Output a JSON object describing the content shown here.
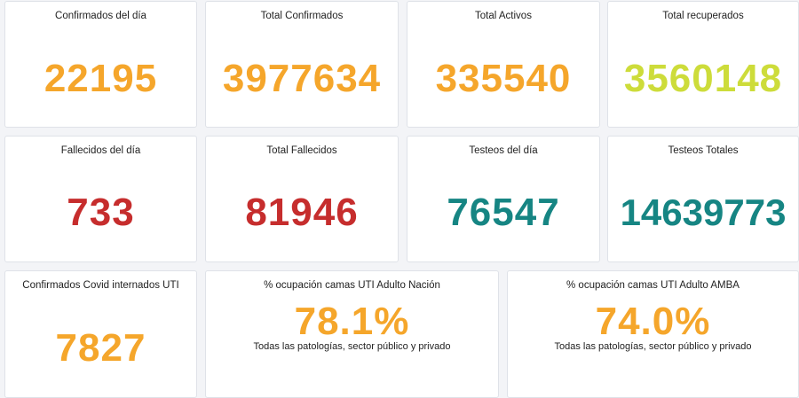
{
  "row1": {
    "card1": {
      "title": "Confirmados del día",
      "value": "22195"
    },
    "card2": {
      "title": "Total Confirmados",
      "value": "3977634"
    },
    "card3": {
      "title": "Total Activos",
      "value": "335540"
    },
    "card4": {
      "title": "Total recuperados",
      "value": "3560148"
    }
  },
  "row2": {
    "card1": {
      "title": "Fallecidos del día",
      "value": "733"
    },
    "card2": {
      "title": "Total Fallecidos",
      "value": "81946"
    },
    "card3": {
      "title": "Testeos del día",
      "value": "76547"
    },
    "card4": {
      "title": "Testeos Totales",
      "value": "14639773"
    }
  },
  "row3": {
    "card1": {
      "title": "Confirmados Covid internados UTI",
      "value": "7827"
    },
    "card2": {
      "title": "% ocupación camas UTI Adulto Nación",
      "value": "78.1%",
      "subtitle": "Todas las patologías, sector público y privado"
    },
    "card3": {
      "title": "% ocupación camas UTI Adulto AMBA",
      "value": "74.0%",
      "subtitle": "Todas las patologías, sector público y privado"
    }
  },
  "colors": {
    "orange": "#f5a62b",
    "lime": "#cddc3a",
    "red": "#c62d2d",
    "teal": "#168583"
  }
}
